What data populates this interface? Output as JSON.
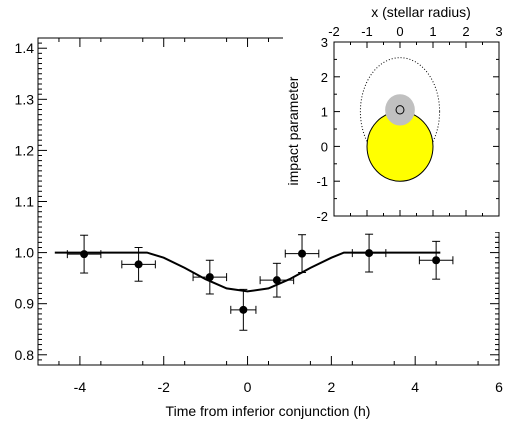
{
  "chart_data": [
    {
      "type": "scatter",
      "title": "",
      "xlabel": "Time from inferior conjunction (h)",
      "ylabel": "",
      "xlim": [
        -5,
        6
      ],
      "ylim": [
        0.78,
        1.42
      ],
      "x_ticks": [
        -4,
        -2,
        0,
        2,
        4,
        6
      ],
      "y_ticks": [
        0.8,
        0.9,
        1.0,
        1.1,
        1.2,
        1.3,
        1.4
      ],
      "x_tick_labels": [
        "-4",
        "-2",
        "0",
        "2",
        "4",
        "6"
      ],
      "y_tick_labels": [
        "0.8",
        "0.9",
        "1.0",
        "1.1",
        "1.2",
        "1.3",
        "1.4"
      ],
      "grid": false,
      "points": [
        {
          "x": -3.9,
          "y": 0.997,
          "xerr": 0.4,
          "yerr": 0.037
        },
        {
          "x": -2.6,
          "y": 0.977,
          "xerr": 0.4,
          "yerr": 0.033
        },
        {
          "x": -0.9,
          "y": 0.952,
          "xerr": 0.4,
          "yerr": 0.033
        },
        {
          "x": -0.1,
          "y": 0.888,
          "xerr": 0.3,
          "yerr": 0.04
        },
        {
          "x": 0.7,
          "y": 0.946,
          "xerr": 0.4,
          "yerr": 0.033
        },
        {
          "x": 1.3,
          "y": 0.998,
          "xerr": 0.4,
          "yerr": 0.037
        },
        {
          "x": 2.9,
          "y": 0.999,
          "xerr": 0.4,
          "yerr": 0.037
        },
        {
          "x": 4.5,
          "y": 0.985,
          "xerr": 0.4,
          "yerr": 0.037
        }
      ],
      "model_curve": {
        "x": [
          -4.6,
          -2.4,
          -2.0,
          -1.5,
          -1.0,
          -0.5,
          0.0,
          0.5,
          1.0,
          1.5,
          2.0,
          2.3,
          4.6
        ],
        "y": [
          1.0,
          1.0,
          0.99,
          0.97,
          0.948,
          0.93,
          0.924,
          0.93,
          0.948,
          0.97,
          0.99,
          1.0,
          1.0
        ]
      }
    },
    {
      "type": "scatter",
      "title": "",
      "xlabel": "x (stellar radius)",
      "ylabel": "impact parameter",
      "xlim": [
        -2,
        3
      ],
      "ylim": [
        -2,
        3
      ],
      "x_ticks": [
        -2,
        -1,
        0,
        1,
        2,
        3
      ],
      "y_ticks": [
        -2,
        -1,
        0,
        1,
        2,
        3
      ],
      "x_tick_labels": [
        "-2",
        "-1",
        "0",
        "1",
        "2",
        "3"
      ],
      "y_tick_labels": [
        "-2",
        "-1",
        "0",
        "1",
        "2",
        "3"
      ],
      "grid": false,
      "star": {
        "x": 0,
        "y": 0,
        "r": 1,
        "color": "#ffff00"
      },
      "halo": {
        "x": 0,
        "y": 1.05,
        "r": 0.45,
        "color": "#c0c0c0"
      },
      "planet": {
        "x": 0,
        "y": 1.05,
        "r": 0.12
      },
      "orbit": {
        "cx": 0,
        "cy": 1.0,
        "rx": 1.2,
        "ry": 1.55,
        "dash": "dotted"
      }
    }
  ]
}
